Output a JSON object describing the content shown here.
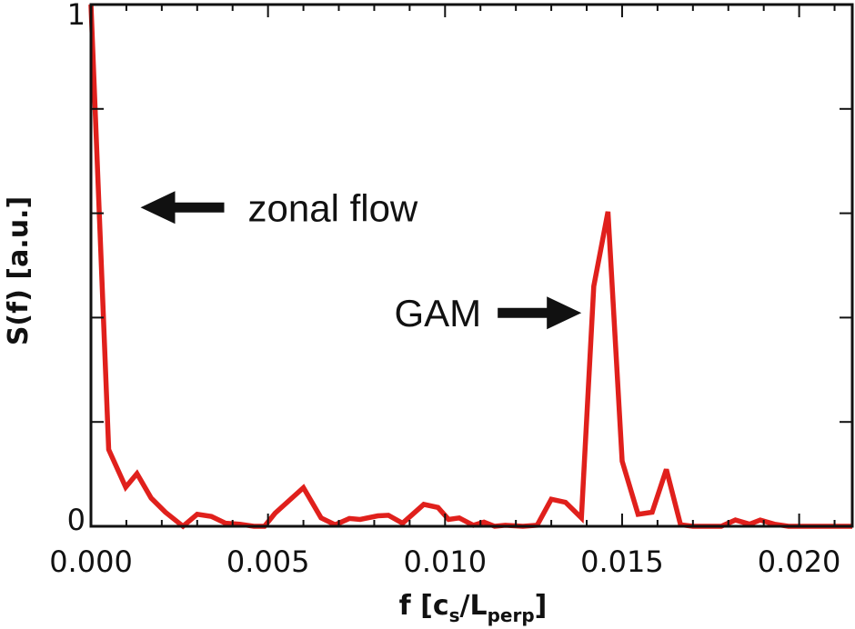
{
  "chart_data": {
    "type": "line",
    "xlabel_parts": {
      "prefix": "f  [c",
      "sub1": "s",
      "mid": "/L",
      "sub2": "perp",
      "suffix": "]"
    },
    "ylabel": "S(f)  [a.u.]",
    "xlim": [
      0,
      0.0215
    ],
    "ylim": [
      0,
      1
    ],
    "xticks": [
      {
        "value": 0.0,
        "label": "0.000"
      },
      {
        "value": 0.005,
        "label": "0.005"
      },
      {
        "value": 0.01,
        "label": "0.010"
      },
      {
        "value": 0.015,
        "label": "0.015"
      },
      {
        "value": 0.02,
        "label": "0.020"
      }
    ],
    "yticks_labeled": [
      {
        "value": 0,
        "label": "0"
      },
      {
        "value": 1,
        "label": "1"
      }
    ],
    "series": [
      {
        "color": "#e0201c",
        "x": [
          0.0,
          0.0005,
          0.00098,
          0.0013,
          0.0017,
          0.0021,
          0.0026,
          0.003,
          0.0034,
          0.0038,
          0.0042,
          0.0046,
          0.0049,
          0.0052,
          0.006,
          0.0065,
          0.0069,
          0.0073,
          0.0076,
          0.0081,
          0.0084,
          0.0088,
          0.0094,
          0.0098,
          0.0101,
          0.0104,
          0.0108,
          0.0111,
          0.0114,
          0.0117,
          0.0122,
          0.0126,
          0.013,
          0.0134,
          0.01385,
          0.0142,
          0.0146,
          0.015,
          0.01545,
          0.01585,
          0.01625,
          0.01665,
          0.017,
          0.0174,
          0.0178,
          0.0182,
          0.0186,
          0.0189,
          0.0193,
          0.0197,
          0.0202,
          0.0215
        ],
        "y": [
          1.0,
          0.147,
          0.075,
          0.101,
          0.054,
          0.027,
          0.0,
          0.023,
          0.019,
          0.006,
          0.004,
          0.0,
          0.0,
          0.025,
          0.074,
          0.016,
          0.003,
          0.015,
          0.013,
          0.02,
          0.021,
          0.006,
          0.042,
          0.036,
          0.013,
          0.016,
          0.002,
          0.008,
          0.0,
          0.002,
          0.0,
          0.002,
          0.052,
          0.046,
          0.016,
          0.46,
          0.603,
          0.125,
          0.023,
          0.027,
          0.109,
          0.003,
          0.0,
          0.0,
          0.0,
          0.012,
          0.004,
          0.012,
          0.004,
          0.0,
          0.0,
          0.0
        ]
      }
    ],
    "annotations": [
      {
        "text": "zonal flow",
        "arrow_direction": "left",
        "arrow_tip": [
          0.0014,
          0.611
        ]
      },
      {
        "text": "GAM",
        "arrow_direction": "right",
        "arrow_tip": [
          0.01385,
          0.409
        ]
      }
    ]
  }
}
